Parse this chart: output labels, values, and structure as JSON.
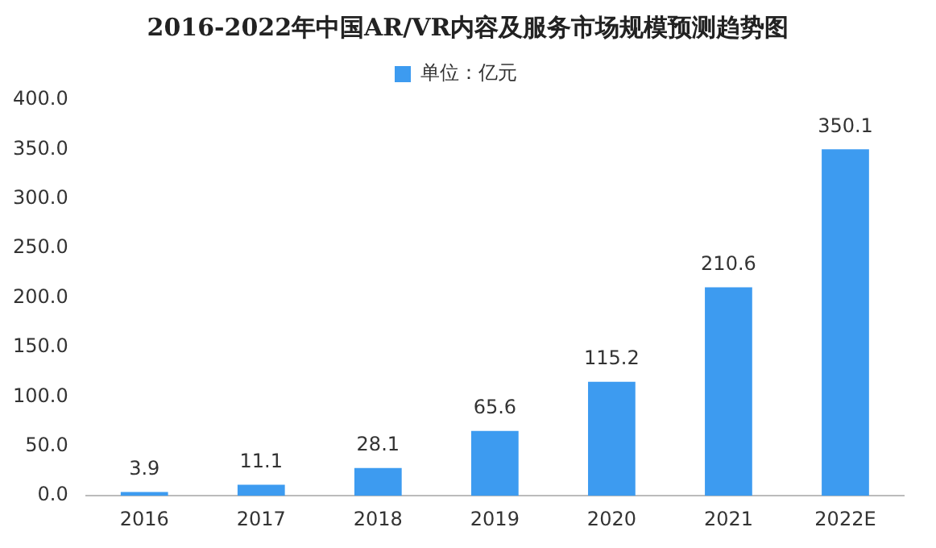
{
  "chart_data": {
    "type": "bar",
    "title": "2016-2022年中国AR/VR内容及服务市场规模预测趋势图",
    "categories": [
      "2016",
      "2017",
      "2018",
      "2019",
      "2020",
      "2021",
      "2022E"
    ],
    "series": [
      {
        "name": "单位：亿元",
        "color": "#3d9bf0",
        "values": [
          3.9,
          11.1,
          28.1,
          65.6,
          115.2,
          210.6,
          350.1
        ]
      }
    ],
    "ylim": [
      0,
      400
    ],
    "yticks": [
      {
        "value": 0,
        "label": "0.0"
      },
      {
        "value": 50,
        "label": "50.0"
      },
      {
        "value": 100,
        "label": "100.0"
      },
      {
        "value": 150,
        "label": "150.0"
      },
      {
        "value": 200,
        "label": "200.0"
      },
      {
        "value": 250,
        "label": "250.0"
      },
      {
        "value": 300,
        "label": "300.0"
      },
      {
        "value": 350,
        "label": "350.0"
      },
      {
        "value": 400,
        "label": "400.0"
      }
    ],
    "grid": false,
    "legend": "top",
    "data_labels": true
  }
}
